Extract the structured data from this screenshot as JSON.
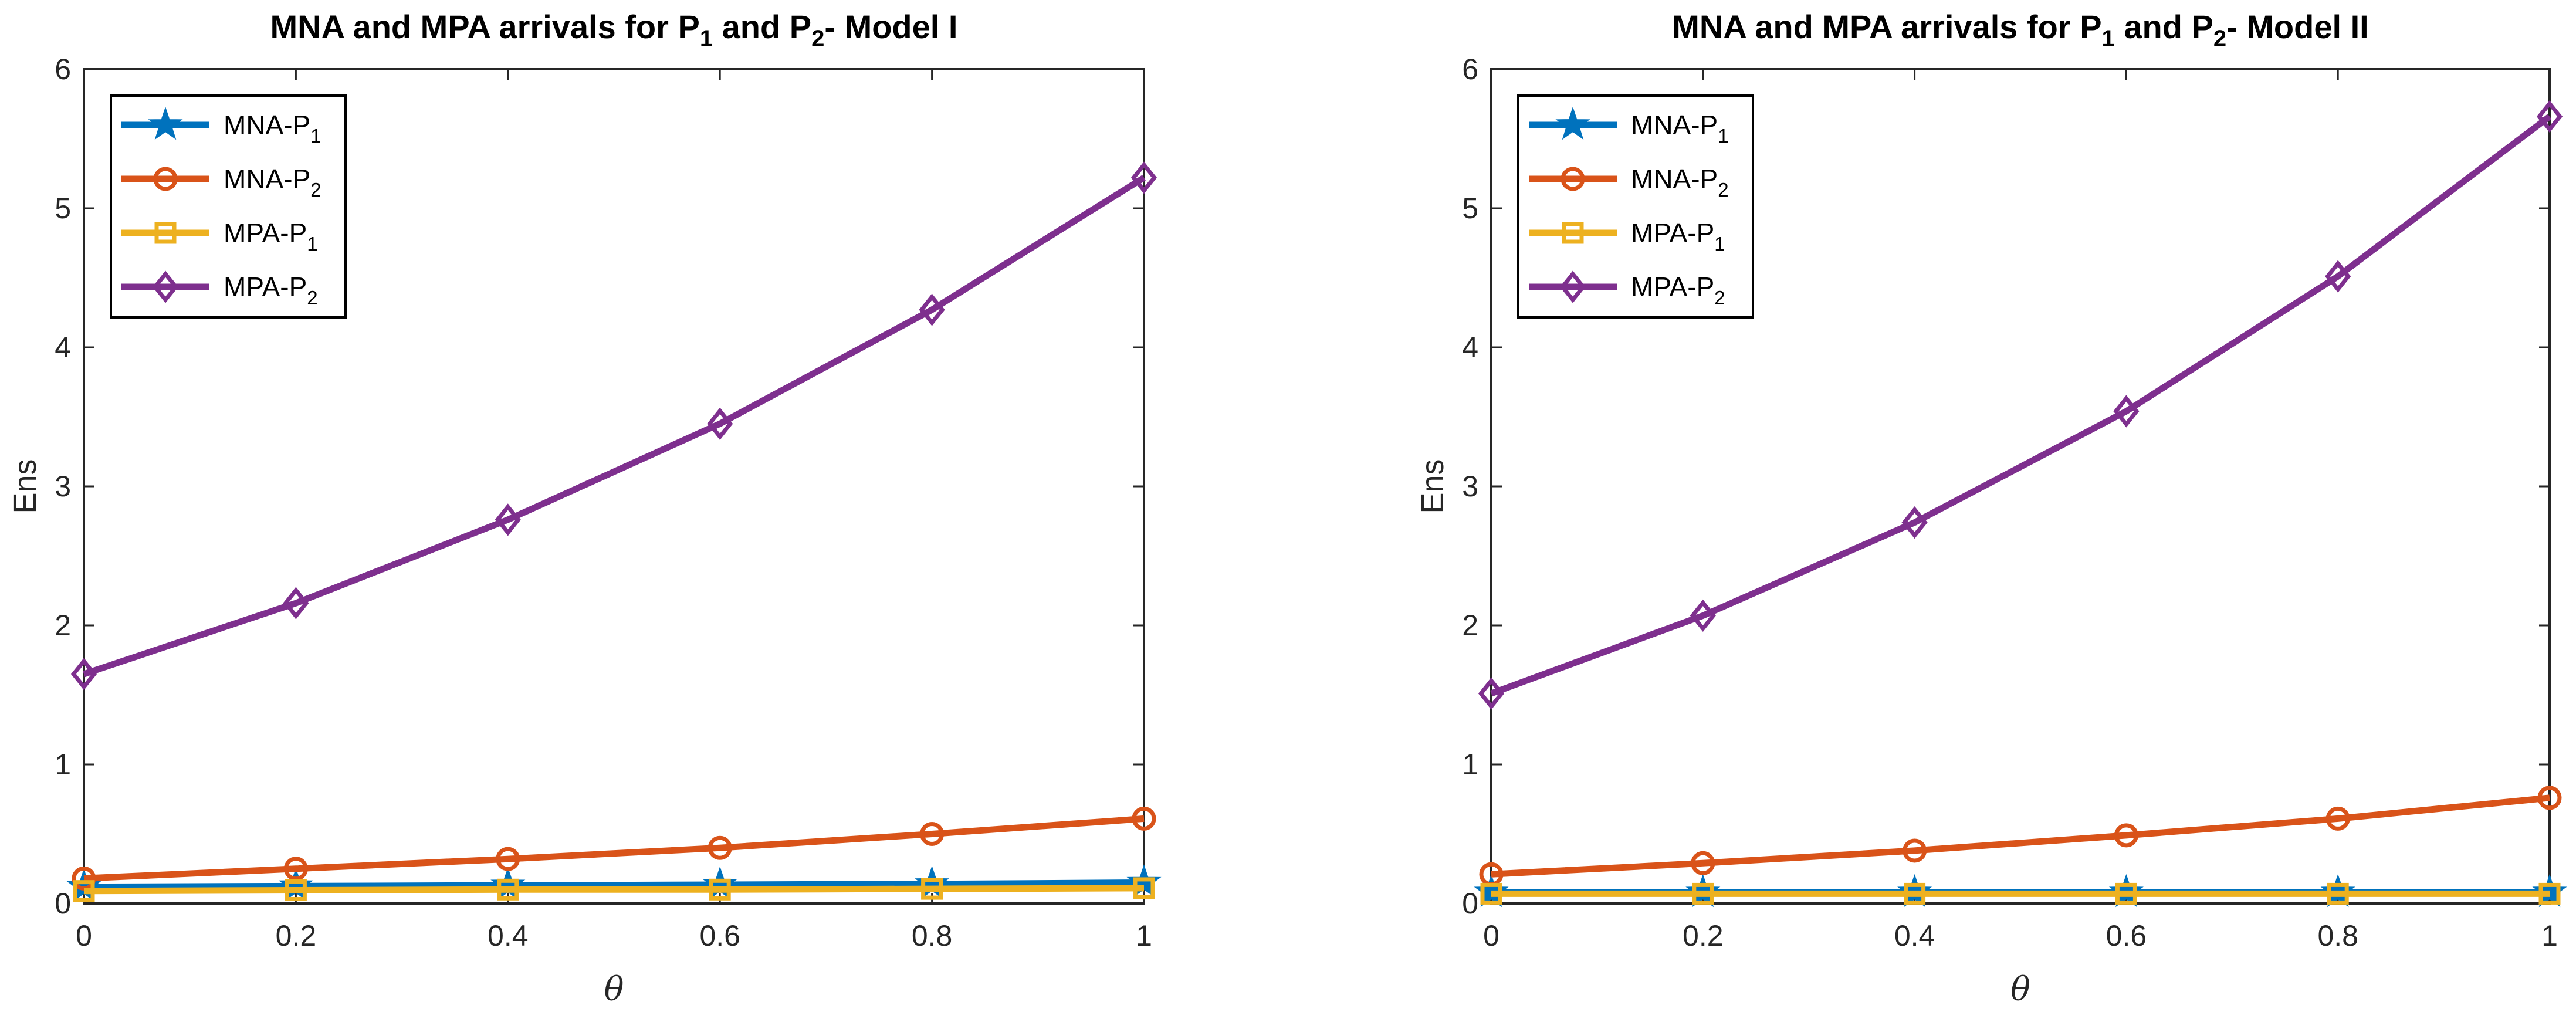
{
  "colors": {
    "mna_p1": "#0072BD",
    "mna_p2": "#D95319",
    "mpa_p1": "#EDB120",
    "mpa_p2": "#7E2F8E",
    "axis": "#262626"
  },
  "chart_data": [
    {
      "type": "line",
      "title": {
        "prefix": "MNA and MPA arrivals for P",
        "sub1": "1",
        "middle": " and P",
        "sub2": "2",
        "suffix": "- Model I"
      },
      "xlabel": "θ",
      "ylabel": "Ens",
      "xlim": [
        0,
        1
      ],
      "ylim": [
        0,
        6
      ],
      "xticks": [
        0,
        0.2,
        0.4,
        0.6,
        0.8,
        1
      ],
      "yticks": [
        0,
        1,
        2,
        3,
        4,
        5,
        6
      ],
      "legend_location": "top-left",
      "x": [
        0,
        0.2,
        0.4,
        0.6,
        0.8,
        1
      ],
      "series": [
        {
          "name": "MNA-P",
          "sub": "1",
          "marker": "star",
          "color_key": "mna_p1",
          "values": [
            0.12,
            0.125,
            0.13,
            0.135,
            0.14,
            0.15
          ]
        },
        {
          "name": "MNA-P",
          "sub": "2",
          "marker": "circle",
          "color_key": "mna_p2",
          "values": [
            0.18,
            0.25,
            0.32,
            0.4,
            0.5,
            0.61
          ]
        },
        {
          "name": "MPA-P",
          "sub": "1",
          "marker": "square",
          "color_key": "mpa_p1",
          "values": [
            0.09,
            0.095,
            0.1,
            0.1,
            0.105,
            0.11
          ]
        },
        {
          "name": "MPA-P",
          "sub": "2",
          "marker": "diamond",
          "color_key": "mpa_p2",
          "values": [
            1.65,
            2.16,
            2.76,
            3.45,
            4.27,
            5.22
          ]
        }
      ]
    },
    {
      "type": "line",
      "title": {
        "prefix": "MNA and MPA arrivals for P",
        "sub1": "1",
        "middle": " and P",
        "sub2": "2",
        "suffix": "- Model II"
      },
      "xlabel": "θ",
      "ylabel": "Ens",
      "xlim": [
        0,
        1
      ],
      "ylim": [
        0,
        6
      ],
      "xticks": [
        0,
        0.2,
        0.4,
        0.6,
        0.8,
        1
      ],
      "yticks": [
        0,
        1,
        2,
        3,
        4,
        5,
        6
      ],
      "legend_location": "top-left",
      "x": [
        0,
        0.2,
        0.4,
        0.6,
        0.8,
        1
      ],
      "series": [
        {
          "name": "MNA-P",
          "sub": "1",
          "marker": "star",
          "color_key": "mna_p1",
          "values": [
            0.08,
            0.08,
            0.08,
            0.08,
            0.08,
            0.08
          ]
        },
        {
          "name": "MNA-P",
          "sub": "2",
          "marker": "circle",
          "color_key": "mna_p2",
          "values": [
            0.21,
            0.29,
            0.38,
            0.49,
            0.61,
            0.76
          ]
        },
        {
          "name": "MPA-P",
          "sub": "1",
          "marker": "square",
          "color_key": "mpa_p1",
          "values": [
            0.07,
            0.07,
            0.07,
            0.07,
            0.07,
            0.07
          ]
        },
        {
          "name": "MPA-P",
          "sub": "2",
          "marker": "diamond",
          "color_key": "mpa_p2",
          "values": [
            1.51,
            2.07,
            2.74,
            3.54,
            4.51,
            5.66
          ]
        }
      ]
    }
  ]
}
